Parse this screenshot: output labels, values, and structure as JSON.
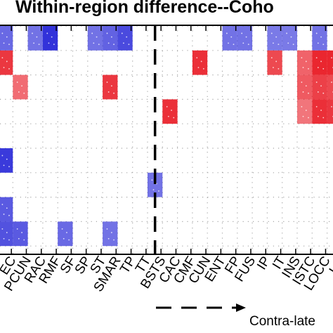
{
  "chart_data": {
    "type": "heatmap",
    "title": "Within-region difference--Coho",
    "x_tick_labels": [
      "EC",
      "PCUN",
      "RAC",
      "RMF",
      "SF",
      "SP",
      "ST",
      "SMAR",
      "TP",
      "TT",
      "BSTS",
      "CAC",
      "CMF",
      "CUN",
      "ENT",
      "FP",
      "FUS",
      "IP",
      "IT",
      "INS",
      "ISTC",
      "LOCC",
      "LO"
    ],
    "x_tick_columns": [
      0.9,
      1.9,
      2.9,
      3.9,
      4.9,
      5.9,
      6.9,
      7.9,
      8.9,
      9.9,
      10.9,
      11.9,
      12.9,
      13.9,
      14.9,
      15.9,
      16.9,
      17.9,
      18.9,
      19.9,
      20.9,
      21.9,
      22.9
    ],
    "footer_label": "Contra-late",
    "divider_column": 10.5,
    "colors": {
      "positive": "#e8141e",
      "negative": "#2a2ad8",
      "background": "#ffffff",
      "dot": "#a8a8a8"
    },
    "cells": [
      {
        "col": 0,
        "row": 0,
        "sign": -1,
        "strength": 0.6
      },
      {
        "col": 2,
        "row": 0,
        "sign": -1,
        "strength": 0.55
      },
      {
        "col": 3,
        "row": 0,
        "sign": -1,
        "strength": 0.95
      },
      {
        "col": 6,
        "row": 0,
        "sign": -1,
        "strength": 0.55
      },
      {
        "col": 7,
        "row": 0,
        "sign": -1,
        "strength": 0.65
      },
      {
        "col": 8,
        "row": 0,
        "sign": -1,
        "strength": 0.8
      },
      {
        "col": 15,
        "row": 0,
        "sign": -1,
        "strength": 0.55
      },
      {
        "col": 16,
        "row": 0,
        "sign": -1,
        "strength": 0.55
      },
      {
        "col": 18,
        "row": 0,
        "sign": -1,
        "strength": 0.5
      },
      {
        "col": 19,
        "row": 0,
        "sign": -1,
        "strength": 0.5
      },
      {
        "col": 21,
        "row": 0,
        "sign": -1,
        "strength": 0.55
      },
      {
        "col": 0,
        "row": 1,
        "sign": 1,
        "strength": 0.8
      },
      {
        "col": 13,
        "row": 1,
        "sign": 1,
        "strength": 0.85
      },
      {
        "col": 18,
        "row": 1,
        "sign": 1,
        "strength": 0.7
      },
      {
        "col": 20,
        "row": 1,
        "sign": 1,
        "strength": 0.55
      },
      {
        "col": 21,
        "row": 1,
        "sign": 1,
        "strength": 0.9
      },
      {
        "col": 22,
        "row": 1,
        "sign": 1,
        "strength": 0.9
      },
      {
        "col": 1,
        "row": 2,
        "sign": 1,
        "strength": 0.5
      },
      {
        "col": 7,
        "row": 2,
        "sign": 1,
        "strength": 0.8
      },
      {
        "col": 20,
        "row": 2,
        "sign": 1,
        "strength": 0.6
      },
      {
        "col": 21,
        "row": 2,
        "sign": 1,
        "strength": 0.75
      },
      {
        "col": 22,
        "row": 2,
        "sign": 1,
        "strength": 0.7
      },
      {
        "col": 11,
        "row": 3,
        "sign": 1,
        "strength": 0.85
      },
      {
        "col": 20,
        "row": 3,
        "sign": 1,
        "strength": 0.45
      },
      {
        "col": 21,
        "row": 3,
        "sign": 1,
        "strength": 0.85
      },
      {
        "col": 22,
        "row": 3,
        "sign": 1,
        "strength": 0.8
      },
      {
        "col": 0,
        "row": 5,
        "sign": -1,
        "strength": 0.9
      },
      {
        "col": 10,
        "row": 6,
        "sign": -1,
        "strength": 0.55
      },
      {
        "col": 0,
        "row": 7,
        "sign": -1,
        "strength": 0.7
      },
      {
        "col": 0,
        "row": 8,
        "sign": -1,
        "strength": 0.75
      },
      {
        "col": 1,
        "row": 8,
        "sign": -1,
        "strength": 0.7
      },
      {
        "col": 4,
        "row": 8,
        "sign": -1,
        "strength": 0.6
      },
      {
        "col": 7,
        "row": 8,
        "sign": -1,
        "strength": 0.55
      }
    ]
  }
}
